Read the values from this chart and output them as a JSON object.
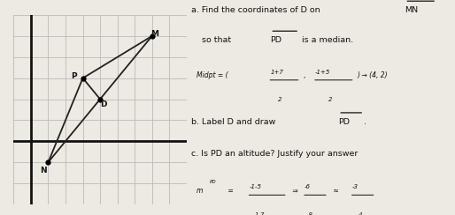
{
  "N": [
    1,
    -1
  ],
  "P": [
    3,
    3
  ],
  "M": [
    7,
    5
  ],
  "D": [
    4,
    2
  ],
  "grid_color": "#bbbbbb",
  "bg_color": "#ede9e3",
  "line_color": "#222222",
  "axis_color": "#111111",
  "text_color": "#111111",
  "xlim": [
    -1,
    9
  ],
  "ylim": [
    -3,
    6
  ]
}
